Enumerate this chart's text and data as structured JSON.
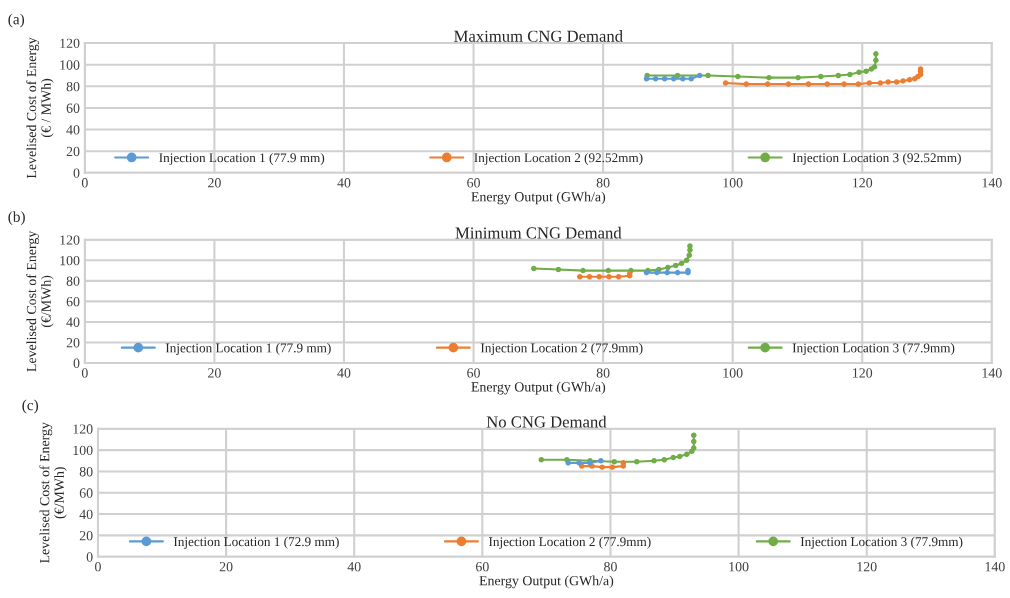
{
  "chart_data": [
    {
      "type": "line",
      "title": "Maximum CNG Demand",
      "xlabel": "Energy Output (GWh/a)",
      "ylabel": "Levelised Cost of Energy\n(€ / MWh)",
      "annotations": [
        "(a)"
      ],
      "xlim": [
        0,
        140
      ],
      "xticks": [
        0,
        20,
        40,
        60,
        80,
        100,
        120,
        140
      ],
      "ylim": [
        0,
        120
      ],
      "yticks": [
        0,
        20,
        40,
        60,
        80,
        100,
        120
      ],
      "grid": true,
      "legend": "bottom",
      "marker": "circle",
      "line_style": "solid",
      "series": [
        {
          "name": "Injection Location 1 (77.9 mm)",
          "color": "#5b9bd5",
          "x": [
            86.7,
            88.1,
            89.5,
            90.9,
            92.3,
            93.6,
            94.9
          ],
          "values": [
            87,
            87,
            87,
            87,
            87,
            87,
            90
          ]
        },
        {
          "name": "Injection Location 2 (92.52mm)",
          "color": "#ed7d31",
          "x": [
            98.9,
            102.1,
            105.4,
            108.6,
            111.7,
            114.6,
            117.2,
            119.4,
            121.1,
            122.8,
            124.0,
            125.3,
            126.3,
            127.3,
            128.1,
            128.6,
            129.0,
            129.0,
            129.0
          ],
          "values": [
            83,
            82,
            82,
            82,
            82,
            82,
            82,
            82,
            83,
            83,
            84,
            84,
            85,
            86,
            87,
            89,
            91,
            94,
            96
          ]
        },
        {
          "name": "Injection Location 3 (92.52mm)",
          "color": "#70ad47",
          "x": [
            86.8,
            91.5,
            96.2,
            100.8,
            105.6,
            110.1,
            113.6,
            116.3,
            118.1,
            119.5,
            120.6,
            121.4,
            121.9,
            122.1,
            122.1
          ],
          "values": [
            90,
            90,
            90,
            89,
            88,
            88,
            89,
            90,
            91,
            93,
            94,
            96,
            98,
            104,
            110
          ]
        }
      ]
    },
    {
      "type": "line",
      "title": "Minimum CNG Demand",
      "xlabel": "Energy Output (GWh/a)",
      "ylabel": "Levelised Cost of Energy\n(€/MWh)",
      "annotations": [
        "(b)"
      ],
      "xlim": [
        0,
        140
      ],
      "xticks": [
        0,
        20,
        40,
        60,
        80,
        100,
        120,
        140
      ],
      "ylim": [
        0,
        120
      ],
      "yticks": [
        0,
        20,
        40,
        60,
        80,
        100,
        120
      ],
      "grid": true,
      "legend": "bottom",
      "marker": "circle",
      "line_style": "solid",
      "series": [
        {
          "name": "Injection Location 1 (77.9 mm)",
          "color": "#5b9bd5",
          "x": [
            86.7,
            88.3,
            89.9,
            91.5,
            93.1,
            93.1
          ],
          "values": [
            88,
            88,
            88,
            88,
            88,
            90
          ]
        },
        {
          "name": "Injection Location 2 (77.9mm)",
          "color": "#ed7d31",
          "x": [
            76.4,
            77.9,
            79.4,
            80.9,
            82.4,
            84.1,
            84.1
          ],
          "values": [
            84,
            84,
            84,
            84,
            84,
            85,
            87
          ]
        },
        {
          "name": "Injection Location 3 (77.9mm)",
          "color": "#70ad47",
          "x": [
            69.3,
            73.1,
            76.9,
            80.8,
            84.3,
            86.9,
            88.6,
            90.0,
            91.2,
            92.1,
            92.9,
            93.3,
            93.4,
            93.4
          ],
          "values": [
            92,
            91,
            90,
            90,
            90,
            90,
            91,
            93,
            95,
            97,
            100,
            105,
            110,
            114
          ]
        }
      ]
    },
    {
      "type": "line",
      "title": "No CNG Demand",
      "xlabel": "Energy Output (GWh/a)",
      "ylabel": "Levelised Cost of Energy\n(€/MWh)",
      "annotations": [
        "(c)"
      ],
      "xlim": [
        0,
        140
      ],
      "xticks": [
        0,
        20,
        40,
        60,
        80,
        100,
        120,
        140
      ],
      "ylim": [
        0,
        120
      ],
      "yticks": [
        0,
        20,
        40,
        60,
        80,
        100,
        120
      ],
      "grid": true,
      "legend": "bottom",
      "marker": "circle",
      "line_style": "solid",
      "series": [
        {
          "name": "Injection Location 1 (72.9 mm)",
          "color": "#5b9bd5",
          "x": [
            73.4,
            75.1,
            76.8,
            78.5
          ],
          "values": [
            88,
            88,
            88,
            90
          ]
        },
        {
          "name": "Injection Location 2 (77.9mm)",
          "color": "#ed7d31",
          "x": [
            75.5,
            77.1,
            78.7,
            80.3,
            82.0,
            82.0
          ],
          "values": [
            85,
            85,
            84,
            84,
            85,
            88
          ]
        },
        {
          "name": "Injection Location 3 (77.9mm)",
          "color": "#70ad47",
          "x": [
            69.2,
            73.2,
            76.8,
            80.6,
            84.1,
            86.8,
            88.4,
            89.8,
            90.8,
            91.9,
            92.7,
            93.0,
            93.0,
            93.0
          ],
          "values": [
            91,
            91,
            90,
            89,
            89,
            90,
            91,
            93,
            94,
            96,
            99,
            102,
            108,
            114
          ]
        }
      ]
    }
  ]
}
